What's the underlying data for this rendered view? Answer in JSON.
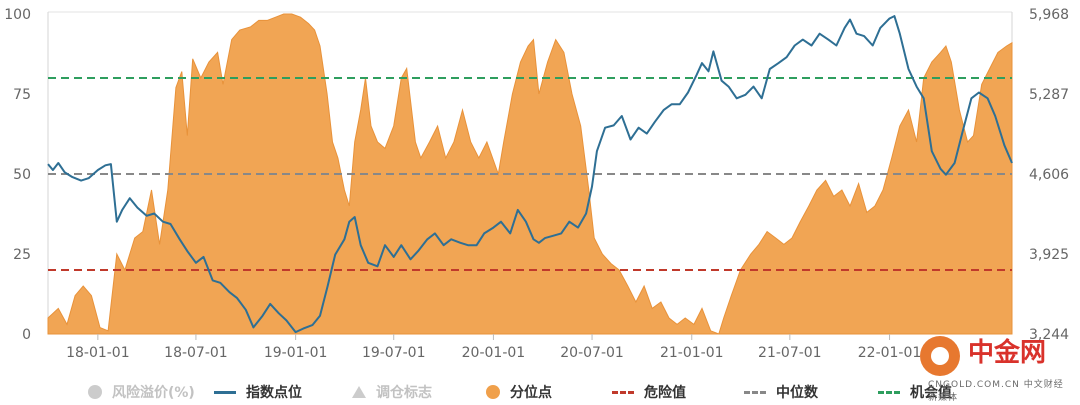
{
  "chart_data": {
    "type": "area",
    "x_ticks": [
      "18-01-01",
      "18-07-01",
      "19-01-01",
      "19-07-01",
      "20-01-01",
      "20-07-01",
      "21-01-01",
      "21-07-01",
      "22-01-01"
    ],
    "x_range": [
      "2017-10-01",
      "2022-08-15"
    ],
    "left_axis": {
      "ticks": [
        "100",
        "75",
        "50",
        "25",
        "0"
      ],
      "range": [
        0,
        100
      ]
    },
    "right_axis": {
      "ticks": [
        "5,968",
        "5,287",
        "4,606",
        "3,925",
        "3,244"
      ],
      "range": [
        3244,
        5968
      ]
    },
    "reference_lines": [
      {
        "name": "危险值",
        "value": 20,
        "color": "#c0392b"
      },
      {
        "name": "中位数",
        "value": 50,
        "color": "#888888"
      },
      {
        "name": "机会值",
        "value": 80,
        "color": "#2e9e5e"
      }
    ],
    "series": [
      {
        "name": "分位点",
        "kind": "area",
        "axis": "left",
        "color": "#f0a04b",
        "points": [
          [
            "2017-10-01",
            5
          ],
          [
            "2017-10-20",
            8
          ],
          [
            "2017-11-05",
            3
          ],
          [
            "2017-11-20",
            12
          ],
          [
            "2017-12-05",
            15
          ],
          [
            "2017-12-20",
            12
          ],
          [
            "2018-01-05",
            2
          ],
          [
            "2018-01-20",
            1
          ],
          [
            "2018-02-05",
            25
          ],
          [
            "2018-02-20",
            20
          ],
          [
            "2018-03-10",
            30
          ],
          [
            "2018-03-25",
            32
          ],
          [
            "2018-04-10",
            45
          ],
          [
            "2018-04-25",
            28
          ],
          [
            "2018-05-10",
            45
          ],
          [
            "2018-05-25",
            77
          ],
          [
            "2018-06-05",
            82
          ],
          [
            "2018-06-15",
            62
          ],
          [
            "2018-06-25",
            86
          ],
          [
            "2018-07-10",
            80
          ],
          [
            "2018-07-25",
            85
          ],
          [
            "2018-08-10",
            88
          ],
          [
            "2018-08-20",
            78
          ],
          [
            "2018-09-05",
            92
          ],
          [
            "2018-09-20",
            95
          ],
          [
            "2018-10-10",
            96
          ],
          [
            "2018-10-25",
            98
          ],
          [
            "2018-11-10",
            98
          ],
          [
            "2018-11-25",
            99
          ],
          [
            "2018-12-10",
            100
          ],
          [
            "2018-12-25",
            100
          ],
          [
            "2019-01-10",
            99
          ],
          [
            "2019-01-25",
            97
          ],
          [
            "2019-02-05",
            95
          ],
          [
            "2019-02-15",
            90
          ],
          [
            "2019-02-28",
            75
          ],
          [
            "2019-03-10",
            60
          ],
          [
            "2019-03-20",
            55
          ],
          [
            "2019-04-01",
            45
          ],
          [
            "2019-04-10",
            40
          ],
          [
            "2019-04-20",
            60
          ],
          [
            "2019-05-01",
            70
          ],
          [
            "2019-05-10",
            80
          ],
          [
            "2019-05-20",
            65
          ],
          [
            "2019-06-01",
            60
          ],
          [
            "2019-06-15",
            58
          ],
          [
            "2019-07-01",
            65
          ],
          [
            "2019-07-15",
            80
          ],
          [
            "2019-07-25",
            83
          ],
          [
            "2019-08-10",
            60
          ],
          [
            "2019-08-20",
            55
          ],
          [
            "2019-09-05",
            60
          ],
          [
            "2019-09-20",
            65
          ],
          [
            "2019-10-05",
            55
          ],
          [
            "2019-10-20",
            60
          ],
          [
            "2019-11-05",
            70
          ],
          [
            "2019-11-20",
            60
          ],
          [
            "2019-12-05",
            55
          ],
          [
            "2019-12-20",
            60
          ],
          [
            "2020-01-10",
            50
          ],
          [
            "2020-01-20",
            60
          ],
          [
            "2020-02-05",
            75
          ],
          [
            "2020-02-20",
            85
          ],
          [
            "2020-03-05",
            90
          ],
          [
            "2020-03-15",
            92
          ],
          [
            "2020-03-25",
            75
          ],
          [
            "2020-04-10",
            85
          ],
          [
            "2020-04-25",
            92
          ],
          [
            "2020-05-10",
            88
          ],
          [
            "2020-05-25",
            75
          ],
          [
            "2020-06-10",
            65
          ],
          [
            "2020-06-25",
            45
          ],
          [
            "2020-07-05",
            30
          ],
          [
            "2020-07-20",
            25
          ],
          [
            "2020-08-05",
            22
          ],
          [
            "2020-08-20",
            20
          ],
          [
            "2020-09-05",
            15
          ],
          [
            "2020-09-20",
            10
          ],
          [
            "2020-10-05",
            15
          ],
          [
            "2020-10-20",
            8
          ],
          [
            "2020-11-05",
            10
          ],
          [
            "2020-11-20",
            5
          ],
          [
            "2020-12-05",
            3
          ],
          [
            "2020-12-20",
            5
          ],
          [
            "2021-01-05",
            3
          ],
          [
            "2021-01-20",
            8
          ],
          [
            "2021-02-05",
            1
          ],
          [
            "2021-02-20",
            0
          ],
          [
            "2021-03-01",
            5
          ],
          [
            "2021-03-15",
            12
          ],
          [
            "2021-04-01",
            20
          ],
          [
            "2021-04-20",
            25
          ],
          [
            "2021-05-05",
            28
          ],
          [
            "2021-05-20",
            32
          ],
          [
            "2021-06-05",
            30
          ],
          [
            "2021-06-20",
            28
          ],
          [
            "2021-07-05",
            30
          ],
          [
            "2021-07-20",
            35
          ],
          [
            "2021-08-05",
            40
          ],
          [
            "2021-08-20",
            45
          ],
          [
            "2021-09-05",
            48
          ],
          [
            "2021-09-20",
            43
          ],
          [
            "2021-10-05",
            45
          ],
          [
            "2021-10-20",
            40
          ],
          [
            "2021-11-05",
            47
          ],
          [
            "2021-11-20",
            38
          ],
          [
            "2021-12-05",
            40
          ],
          [
            "2021-12-20",
            45
          ],
          [
            "2022-01-05",
            55
          ],
          [
            "2022-01-20",
            65
          ],
          [
            "2022-02-05",
            70
          ],
          [
            "2022-02-20",
            60
          ],
          [
            "2022-03-05",
            80
          ],
          [
            "2022-03-20",
            85
          ],
          [
            "2022-04-05",
            88
          ],
          [
            "2022-04-15",
            90
          ],
          [
            "2022-04-25",
            85
          ],
          [
            "2022-05-10",
            70
          ],
          [
            "2022-05-25",
            60
          ],
          [
            "2022-06-05",
            62
          ],
          [
            "2022-06-20",
            78
          ],
          [
            "2022-07-05",
            83
          ],
          [
            "2022-07-20",
            88
          ],
          [
            "2022-08-05",
            90
          ],
          [
            "2022-08-15",
            91
          ]
        ]
      },
      {
        "name": "指数点位",
        "kind": "line",
        "axis": "right",
        "color": "#2e6f94",
        "points": [
          [
            "2017-10-01",
            4690
          ],
          [
            "2017-10-10",
            4640
          ],
          [
            "2017-10-20",
            4700
          ],
          [
            "2017-11-01",
            4620
          ],
          [
            "2017-11-15",
            4580
          ],
          [
            "2017-12-01",
            4550
          ],
          [
            "2017-12-15",
            4570
          ],
          [
            "2018-01-01",
            4640
          ],
          [
            "2018-01-15",
            4680
          ],
          [
            "2018-01-25",
            4690
          ],
          [
            "2018-02-05",
            4200
          ],
          [
            "2018-02-15",
            4300
          ],
          [
            "2018-03-01",
            4400
          ],
          [
            "2018-03-15",
            4320
          ],
          [
            "2018-04-01",
            4250
          ],
          [
            "2018-04-15",
            4270
          ],
          [
            "2018-05-01",
            4200
          ],
          [
            "2018-05-15",
            4180
          ],
          [
            "2018-06-01",
            4050
          ],
          [
            "2018-06-15",
            3950
          ],
          [
            "2018-07-01",
            3850
          ],
          [
            "2018-07-15",
            3900
          ],
          [
            "2018-08-01",
            3700
          ],
          [
            "2018-08-15",
            3680
          ],
          [
            "2018-09-01",
            3600
          ],
          [
            "2018-09-15",
            3550
          ],
          [
            "2018-10-01",
            3450
          ],
          [
            "2018-10-15",
            3300
          ],
          [
            "2018-11-01",
            3400
          ],
          [
            "2018-11-15",
            3500
          ],
          [
            "2018-12-01",
            3420
          ],
          [
            "2018-12-15",
            3360
          ],
          [
            "2019-01-01",
            3260
          ],
          [
            "2019-01-15",
            3290
          ],
          [
            "2019-02-01",
            3320
          ],
          [
            "2019-02-15",
            3400
          ],
          [
            "2019-03-01",
            3650
          ],
          [
            "2019-03-15",
            3920
          ],
          [
            "2019-04-01",
            4050
          ],
          [
            "2019-04-10",
            4200
          ],
          [
            "2019-04-20",
            4240
          ],
          [
            "2019-05-01",
            4000
          ],
          [
            "2019-05-15",
            3850
          ],
          [
            "2019-06-01",
            3820
          ],
          [
            "2019-06-15",
            4000
          ],
          [
            "2019-07-01",
            3900
          ],
          [
            "2019-07-15",
            4000
          ],
          [
            "2019-08-01",
            3880
          ],
          [
            "2019-08-15",
            3950
          ],
          [
            "2019-09-01",
            4050
          ],
          [
            "2019-09-15",
            4100
          ],
          [
            "2019-10-01",
            4000
          ],
          [
            "2019-10-15",
            4050
          ],
          [
            "2019-11-01",
            4020
          ],
          [
            "2019-11-15",
            4000
          ],
          [
            "2019-12-01",
            4000
          ],
          [
            "2019-12-15",
            4100
          ],
          [
            "2020-01-01",
            4150
          ],
          [
            "2020-01-15",
            4200
          ],
          [
            "2020-02-01",
            4100
          ],
          [
            "2020-02-15",
            4300
          ],
          [
            "2020-03-01",
            4200
          ],
          [
            "2020-03-15",
            4050
          ],
          [
            "2020-03-25",
            4020
          ],
          [
            "2020-04-05",
            4060
          ],
          [
            "2020-04-20",
            4080
          ],
          [
            "2020-05-05",
            4100
          ],
          [
            "2020-05-20",
            4200
          ],
          [
            "2020-06-05",
            4150
          ],
          [
            "2020-06-20",
            4270
          ],
          [
            "2020-07-01",
            4500
          ],
          [
            "2020-07-10",
            4800
          ],
          [
            "2020-07-25",
            5000
          ],
          [
            "2020-08-10",
            5020
          ],
          [
            "2020-08-25",
            5100
          ],
          [
            "2020-09-10",
            4900
          ],
          [
            "2020-09-25",
            5000
          ],
          [
            "2020-10-10",
            4950
          ],
          [
            "2020-10-25",
            5050
          ],
          [
            "2020-11-10",
            5150
          ],
          [
            "2020-11-25",
            5200
          ],
          [
            "2020-12-10",
            5200
          ],
          [
            "2020-12-25",
            5300
          ],
          [
            "2021-01-10",
            5450
          ],
          [
            "2021-01-20",
            5550
          ],
          [
            "2021-02-01",
            5480
          ],
          [
            "2021-02-10",
            5650
          ],
          [
            "2021-02-25",
            5400
          ],
          [
            "2021-03-10",
            5350
          ],
          [
            "2021-03-25",
            5250
          ],
          [
            "2021-04-10",
            5280
          ],
          [
            "2021-04-25",
            5350
          ],
          [
            "2021-05-10",
            5250
          ],
          [
            "2021-05-25",
            5500
          ],
          [
            "2021-06-10",
            5550
          ],
          [
            "2021-06-25",
            5600
          ],
          [
            "2021-07-10",
            5700
          ],
          [
            "2021-07-25",
            5750
          ],
          [
            "2021-08-10",
            5700
          ],
          [
            "2021-08-25",
            5800
          ],
          [
            "2021-09-10",
            5750
          ],
          [
            "2021-09-25",
            5700
          ],
          [
            "2021-10-10",
            5850
          ],
          [
            "2021-10-20",
            5920
          ],
          [
            "2021-11-01",
            5800
          ],
          [
            "2021-11-15",
            5780
          ],
          [
            "2021-12-01",
            5700
          ],
          [
            "2021-12-15",
            5850
          ],
          [
            "2022-01-01",
            5930
          ],
          [
            "2022-01-10",
            5950
          ],
          [
            "2022-01-20",
            5800
          ],
          [
            "2022-02-05",
            5500
          ],
          [
            "2022-02-20",
            5350
          ],
          [
            "2022-03-05",
            5250
          ],
          [
            "2022-03-20",
            4800
          ],
          [
            "2022-04-05",
            4650
          ],
          [
            "2022-04-15",
            4600
          ],
          [
            "2022-05-01",
            4700
          ],
          [
            "2022-05-15",
            4950
          ],
          [
            "2022-06-01",
            5250
          ],
          [
            "2022-06-15",
            5300
          ],
          [
            "2022-07-01",
            5250
          ],
          [
            "2022-07-15",
            5100
          ],
          [
            "2022-08-01",
            4850
          ],
          [
            "2022-08-15",
            4700
          ]
        ]
      }
    ],
    "legend_position": "bottom",
    "legend": [
      {
        "label": "风险溢价(%)",
        "marker": "dot",
        "color": "#cccccc",
        "active": false
      },
      {
        "label": "指数点位",
        "marker": "line",
        "color": "#2e6f94",
        "active": true
      },
      {
        "label": "调仓标志",
        "marker": "triangle",
        "color": "#cccccc",
        "active": false
      },
      {
        "label": "分位点",
        "marker": "dot",
        "color": "#f0a04b",
        "active": true
      },
      {
        "label": "危险值",
        "marker": "dash",
        "color": "#c0392b",
        "active": true
      },
      {
        "label": "中位数",
        "marker": "dash",
        "color": "#888888",
        "active": true
      },
      {
        "label": "机会值",
        "marker": "dash",
        "color": "#2e9e5e",
        "active": true
      }
    ],
    "grid": false
  },
  "watermark": {
    "title": "中金网",
    "subtitle": "CNGOLD.COM.CN 中文财经新媒体"
  }
}
